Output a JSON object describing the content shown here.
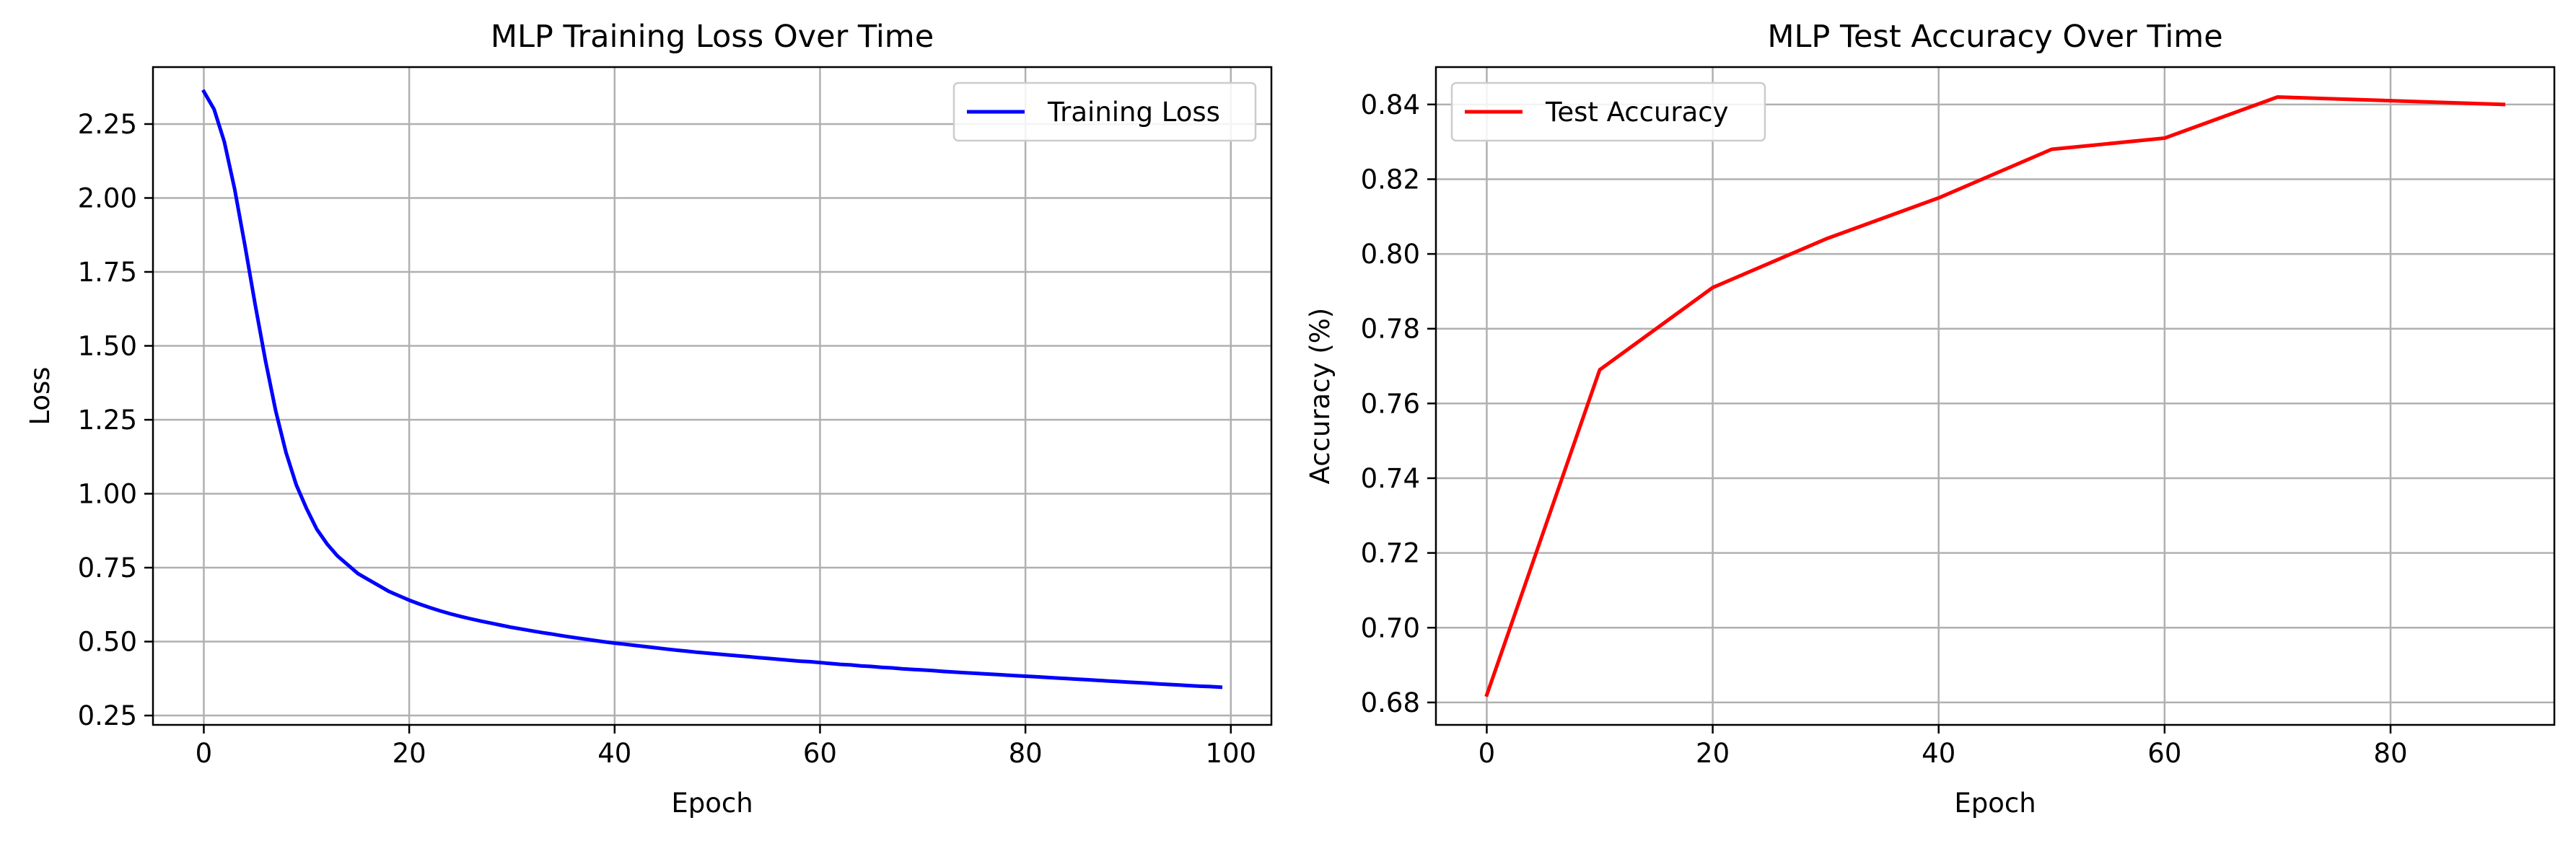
{
  "chart_data": [
    {
      "type": "line",
      "title": "MLP Training Loss Over Time",
      "xlabel": "Epoch",
      "ylabel": "Loss",
      "xlim": [
        -4.95,
        103.95
      ],
      "ylim": [
        0.2184,
        2.4426
      ],
      "xticks": [
        "0",
        "20",
        "40",
        "60",
        "80",
        "100"
      ],
      "xtick_values": [
        0,
        20,
        40,
        60,
        80,
        100
      ],
      "yticks": [
        "0.25",
        "0.50",
        "0.75",
        "1.00",
        "1.25",
        "1.50",
        "1.75",
        "2.00",
        "2.25"
      ],
      "ytick_values": [
        0.25,
        0.5,
        0.75,
        1.0,
        1.25,
        1.5,
        1.75,
        2.0,
        2.25
      ],
      "grid": true,
      "legend": "upper-right",
      "series": [
        {
          "name": "Training Loss",
          "color": "#0000ff",
          "x": [
            0,
            1,
            2,
            3,
            4,
            5,
            6,
            7,
            8,
            9,
            10,
            11,
            12,
            13,
            14,
            15,
            16,
            17,
            18,
            19,
            20,
            21,
            22,
            23,
            24,
            25,
            26,
            27,
            28,
            29,
            30,
            31,
            32,
            33,
            34,
            35,
            36,
            37,
            38,
            39,
            40,
            41,
            42,
            43,
            44,
            45,
            46,
            47,
            48,
            49,
            50,
            51,
            52,
            53,
            54,
            55,
            56,
            57,
            58,
            59,
            60,
            61,
            62,
            63,
            64,
            65,
            66,
            67,
            68,
            69,
            70,
            71,
            72,
            73,
            74,
            75,
            76,
            77,
            78,
            79,
            80,
            81,
            82,
            83,
            84,
            85,
            86,
            87,
            88,
            89,
            90,
            91,
            92,
            93,
            94,
            95,
            96,
            97,
            98,
            99
          ],
          "y": [
            2.36,
            2.3,
            2.19,
            2.03,
            1.84,
            1.64,
            1.45,
            1.28,
            1.14,
            1.03,
            0.95,
            0.88,
            0.83,
            0.79,
            0.76,
            0.73,
            0.71,
            0.69,
            0.67,
            0.655,
            0.64,
            0.627,
            0.615,
            0.604,
            0.594,
            0.585,
            0.577,
            0.569,
            0.562,
            0.555,
            0.548,
            0.542,
            0.536,
            0.53,
            0.525,
            0.519,
            0.514,
            0.509,
            0.504,
            0.499,
            0.495,
            0.491,
            0.487,
            0.483,
            0.479,
            0.475,
            0.471,
            0.468,
            0.464,
            0.461,
            0.458,
            0.455,
            0.452,
            0.449,
            0.446,
            0.443,
            0.44,
            0.437,
            0.434,
            0.432,
            0.429,
            0.426,
            0.423,
            0.421,
            0.418,
            0.416,
            0.413,
            0.411,
            0.408,
            0.406,
            0.404,
            0.402,
            0.399,
            0.397,
            0.395,
            0.393,
            0.391,
            0.389,
            0.387,
            0.385,
            0.383,
            0.381,
            0.379,
            0.377,
            0.375,
            0.373,
            0.371,
            0.369,
            0.367,
            0.365,
            0.363,
            0.361,
            0.359,
            0.357,
            0.355,
            0.353,
            0.351,
            0.349,
            0.348,
            0.346
          ]
        }
      ]
    },
    {
      "type": "line",
      "title": "MLP Test Accuracy Over Time",
      "xlabel": "Epoch",
      "ylabel": "Accuracy (%)",
      "xlim": [
        -4.5,
        94.5
      ],
      "ylim": [
        0.674,
        0.85
      ],
      "xticks": [
        "0",
        "20",
        "40",
        "60",
        "80"
      ],
      "xtick_values": [
        0,
        20,
        40,
        60,
        80
      ],
      "yticks": [
        "0.68",
        "0.70",
        "0.72",
        "0.74",
        "0.76",
        "0.78",
        "0.80",
        "0.82",
        "0.84"
      ],
      "ytick_values": [
        0.68,
        0.7,
        0.72,
        0.74,
        0.76,
        0.78,
        0.8,
        0.82,
        0.84
      ],
      "grid": true,
      "legend": "upper-left",
      "series": [
        {
          "name": "Test Accuracy",
          "color": "#ff0000",
          "x": [
            0,
            10,
            20,
            30,
            40,
            50,
            60,
            70,
            80,
            90
          ],
          "y": [
            0.682,
            0.769,
            0.791,
            0.804,
            0.815,
            0.828,
            0.831,
            0.842,
            0.841,
            0.84
          ]
        }
      ]
    }
  ]
}
